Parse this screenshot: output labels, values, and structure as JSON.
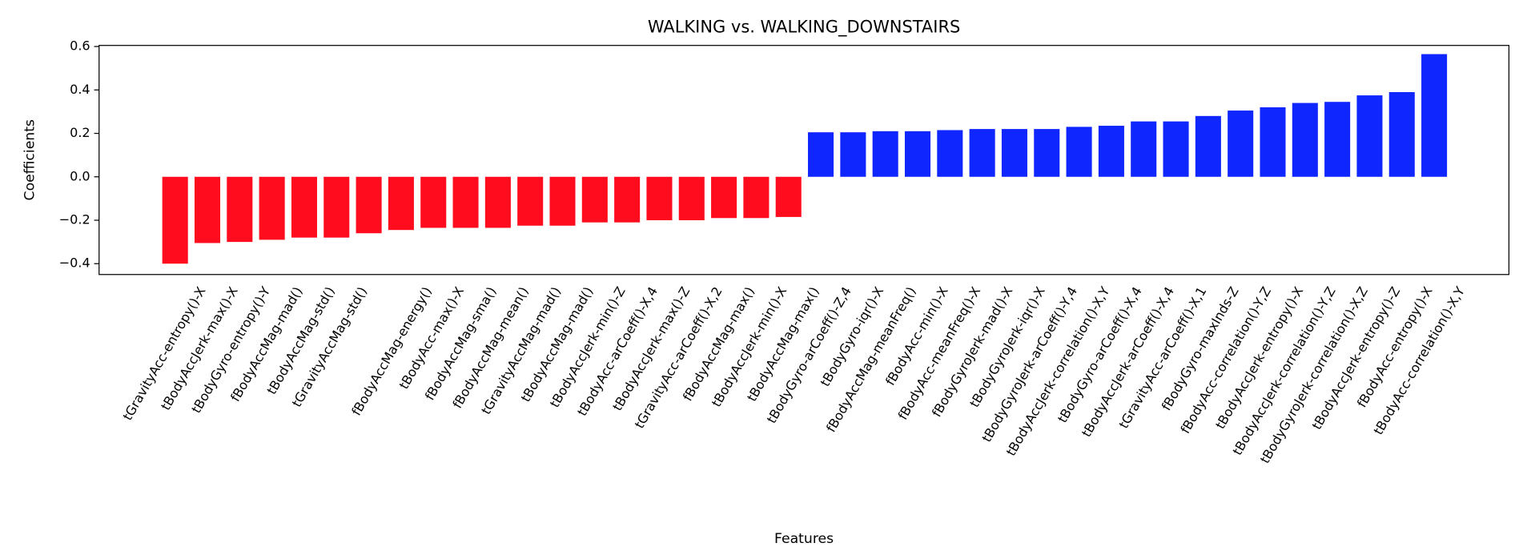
{
  "chart_data": {
    "type": "bar",
    "title": "WALKING vs. WALKING_DOWNSTAIRS",
    "xlabel": "Features",
    "ylabel": "Coefficients",
    "categories": [
      "tGravityAcc-entropy()-X",
      "tBodyAccJerk-max()-X",
      "tBodyGyro-entropy()-Y",
      "fBodyAccMag-mad()",
      "tBodyAccMag-std()",
      "tGravityAccMag-std()",
      null,
      "fBodyAccMag-energy()",
      "tBodyAcc-max()-X",
      "fBodyAccMag-sma()",
      "fBodyAccMag-mean()",
      "tGravityAccMag-mad()",
      "tBodyAccMag-mad()",
      "tBodyAccJerk-min()-Z",
      "tBodyAcc-arCoeff()-X,4",
      "tBodyAccJerk-max()-Z",
      "tGravityAcc-arCoeff()-X,2",
      "fBodyAccMag-max()",
      "tBodyAccJerk-min()-X",
      "tBodyAccMag-max()",
      "tBodyGyro-arCoeff()-Z,4",
      "tBodyGyro-iqr()-X",
      "fBodyAccMag-meanFreq()",
      "fBodyAcc-min()-X",
      "fBodyAcc-meanFreq()-X",
      "fBodyGyroJerk-mad()-X",
      "tBodyGyroJerk-iqr()-X",
      "tBodyGyroJerk-arCoeff()-Y,4",
      "tBodyAccJerk-correlation()-X,Y",
      "tBodyGyro-arCoeff()-X,4",
      "tBodyAccJerk-arCoeff()-X,4",
      "tGravityAcc-arCoeff()-X,1",
      "fBodyGyro-maxInds-Z",
      "fBodyAcc-correlation()-Y,Z",
      "tBodyAccJerk-entropy()-X",
      "tBodyAccJerk-correlation()-Y,Z",
      "tBodyGyroJerk-correlation()-X,Z",
      "tBodyAccJerk-entropy()-Z",
      "fBodyAcc-entropy()-X",
      "tBodyAcc-correlation()-X,Y"
    ],
    "values": [
      -0.4,
      -0.305,
      -0.3,
      -0.29,
      -0.28,
      -0.28,
      -0.26,
      -0.245,
      -0.235,
      -0.235,
      -0.235,
      -0.225,
      -0.225,
      -0.21,
      -0.21,
      -0.2,
      -0.2,
      -0.19,
      -0.19,
      -0.185,
      0.205,
      0.205,
      0.21,
      0.21,
      0.215,
      0.22,
      0.22,
      0.22,
      0.23,
      0.235,
      0.255,
      0.255,
      0.28,
      0.305,
      0.32,
      0.34,
      0.345,
      0.375,
      0.39,
      0.565
    ],
    "negative_color": "#ff0d1e",
    "positive_color": "#0f26ff",
    "ylim": [
      -0.45,
      0.605
    ],
    "yticks": [
      {
        "value": -0.4,
        "label": "−0.4"
      },
      {
        "value": -0.2,
        "label": "−0.2"
      },
      {
        "value": 0,
        "label": "0.0"
      },
      {
        "value": 0.2,
        "label": "0.2"
      },
      {
        "value": 0.4,
        "label": "0.4"
      },
      {
        "value": 0.6,
        "label": "0.6"
      }
    ]
  }
}
